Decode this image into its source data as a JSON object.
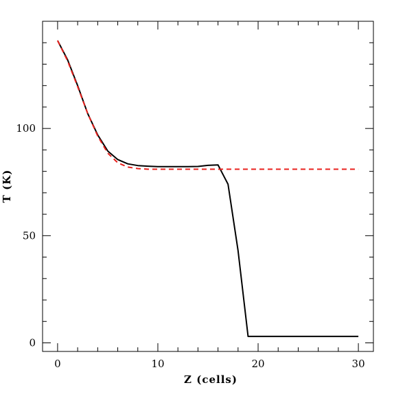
{
  "chart_data": {
    "type": "line",
    "title": "",
    "xlabel": "Z (cells)",
    "ylabel": "T (K)",
    "xlim": [
      -1.5,
      31.5
    ],
    "ylim": [
      -4,
      150
    ],
    "x_ticks": [
      0,
      10,
      20,
      30
    ],
    "x_tick_labels": [
      "0",
      "10",
      "20",
      "30"
    ],
    "y_ticks": [
      0,
      50,
      100
    ],
    "y_tick_labels": [
      "0",
      "50",
      "100"
    ],
    "x_minor_step": 2,
    "y_minor_step": 10,
    "grid": false,
    "legend": "none",
    "series": [
      {
        "style": "solid",
        "color": "#000000",
        "points": [
          [
            0,
            141
          ],
          [
            1,
            132
          ],
          [
            2,
            120
          ],
          [
            3,
            107
          ],
          [
            4,
            97
          ],
          [
            5,
            89.5
          ],
          [
            6,
            85.5
          ],
          [
            7,
            83.5
          ],
          [
            8,
            82.7
          ],
          [
            9,
            82.4
          ],
          [
            10,
            82.2
          ],
          [
            11,
            82.2
          ],
          [
            12,
            82.2
          ],
          [
            13,
            82.2
          ],
          [
            14,
            82.3
          ],
          [
            15,
            82.8
          ],
          [
            16,
            83
          ],
          [
            17,
            74
          ],
          [
            18,
            43
          ],
          [
            19,
            3
          ],
          [
            20,
            3
          ],
          [
            30,
            3
          ]
        ]
      },
      {
        "style": "dashed",
        "color": "#e8201c",
        "points": [
          [
            0,
            141
          ],
          [
            1,
            131.5
          ],
          [
            2,
            119.5
          ],
          [
            3,
            107
          ],
          [
            4,
            96.5
          ],
          [
            5,
            88.5
          ],
          [
            6,
            84
          ],
          [
            7,
            82
          ],
          [
            8,
            81.3
          ],
          [
            9,
            81
          ],
          [
            10,
            81
          ],
          [
            12,
            81
          ],
          [
            14,
            81
          ],
          [
            16,
            81
          ],
          [
            20,
            81
          ],
          [
            25,
            81
          ],
          [
            30,
            81
          ]
        ]
      }
    ]
  }
}
